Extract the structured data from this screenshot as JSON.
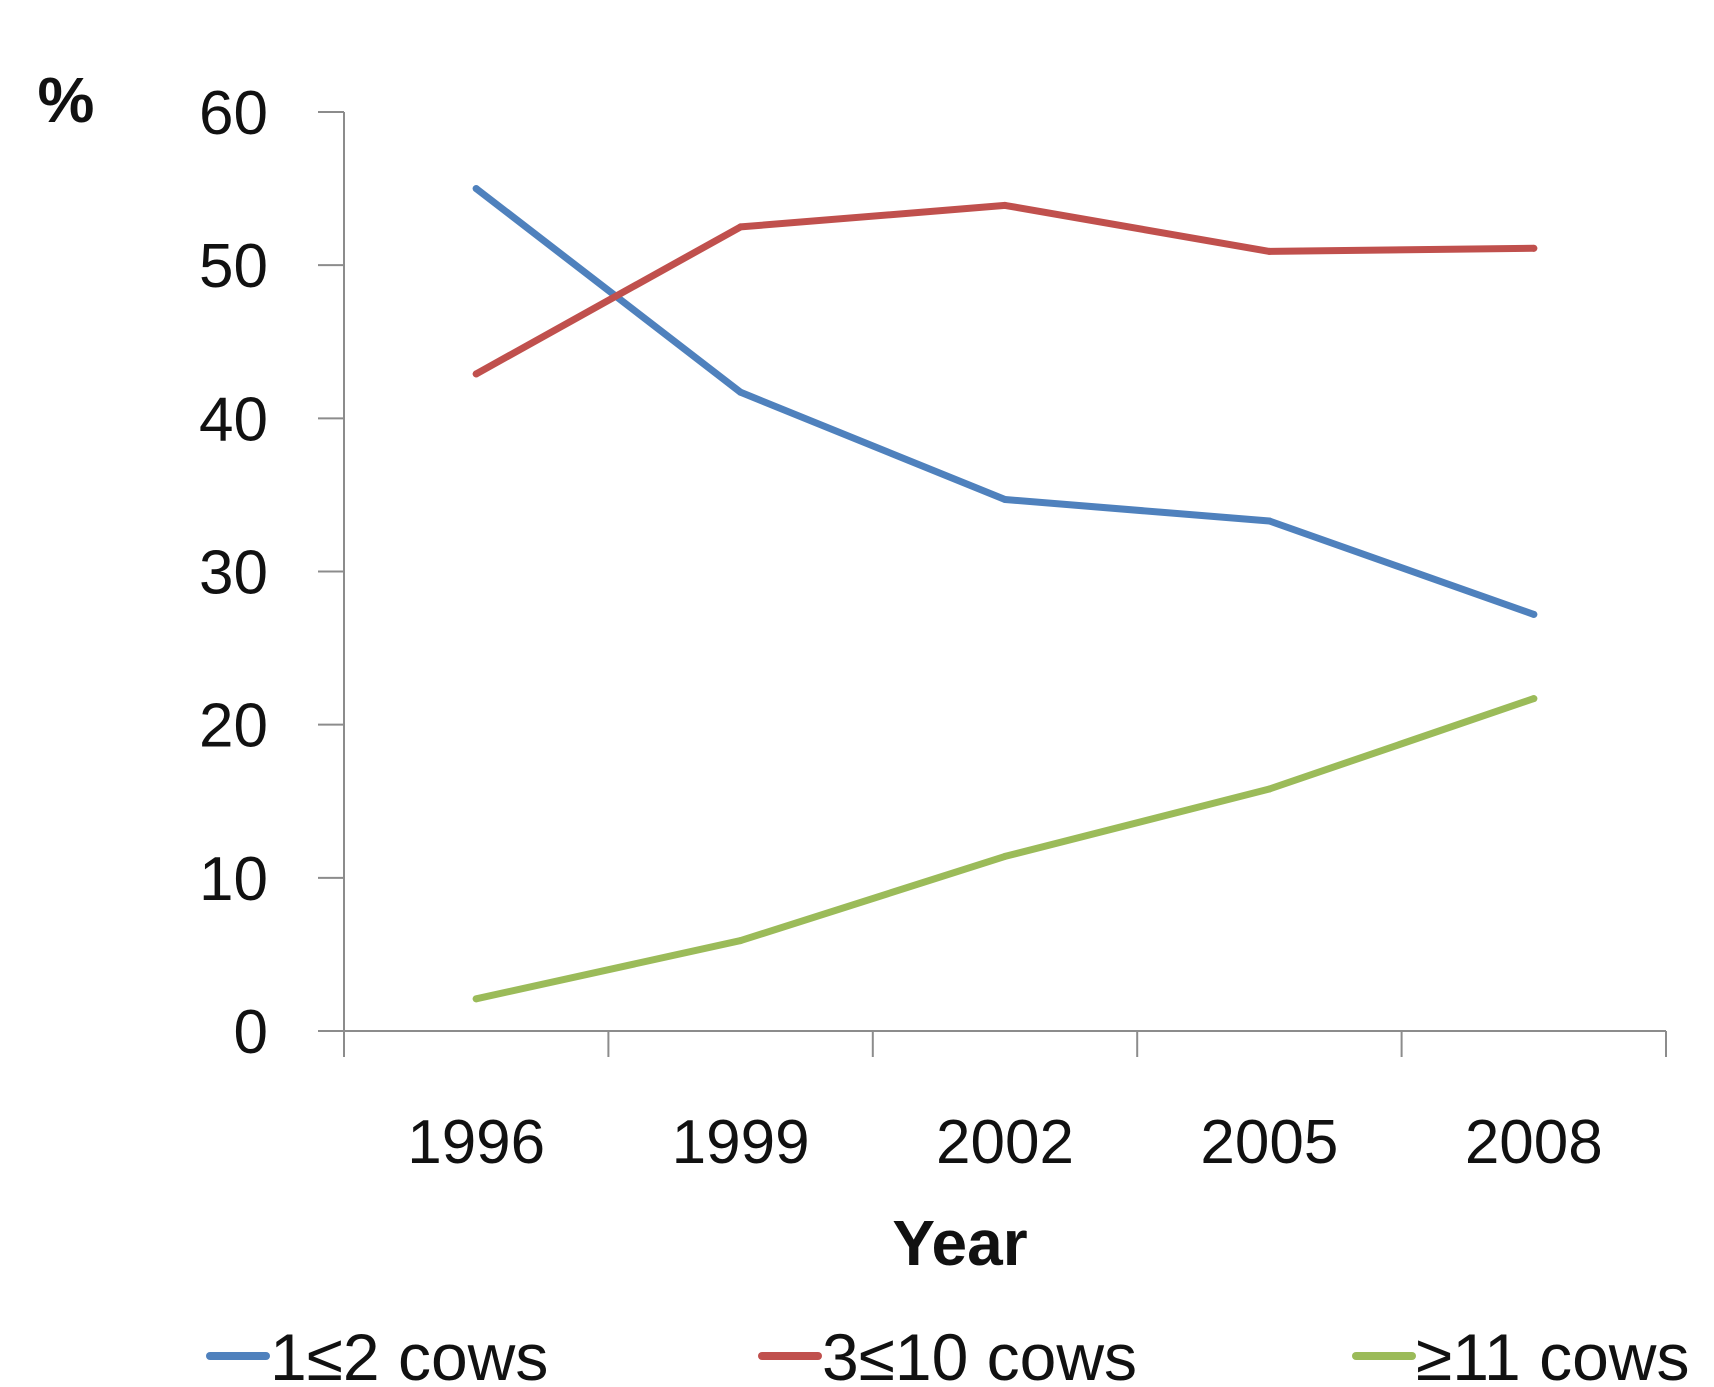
{
  "chart_data": {
    "type": "line",
    "title": "",
    "ylabel": "%",
    "xlabel": "Year",
    "categories": [
      "1996",
      "1999",
      "2002",
      "2005",
      "2008"
    ],
    "ylim": [
      0,
      60
    ],
    "yticks": [
      0,
      10,
      20,
      30,
      40,
      50,
      60
    ],
    "grid": false,
    "legend_position": "bottom",
    "series": [
      {
        "name": "1≤2 cows",
        "color": "#4F81BD",
        "values": [
          55,
          41.7,
          34.7,
          33.3,
          27.2
        ]
      },
      {
        "name": "3≤10 cows",
        "color": "#C0504D",
        "values": [
          42.9,
          52.5,
          53.9,
          50.9,
          51.1
        ]
      },
      {
        "name": "≥11 cows",
        "color": "#9BBB59",
        "values": [
          2.1,
          5.9,
          11.4,
          15.8,
          21.7
        ]
      }
    ]
  }
}
